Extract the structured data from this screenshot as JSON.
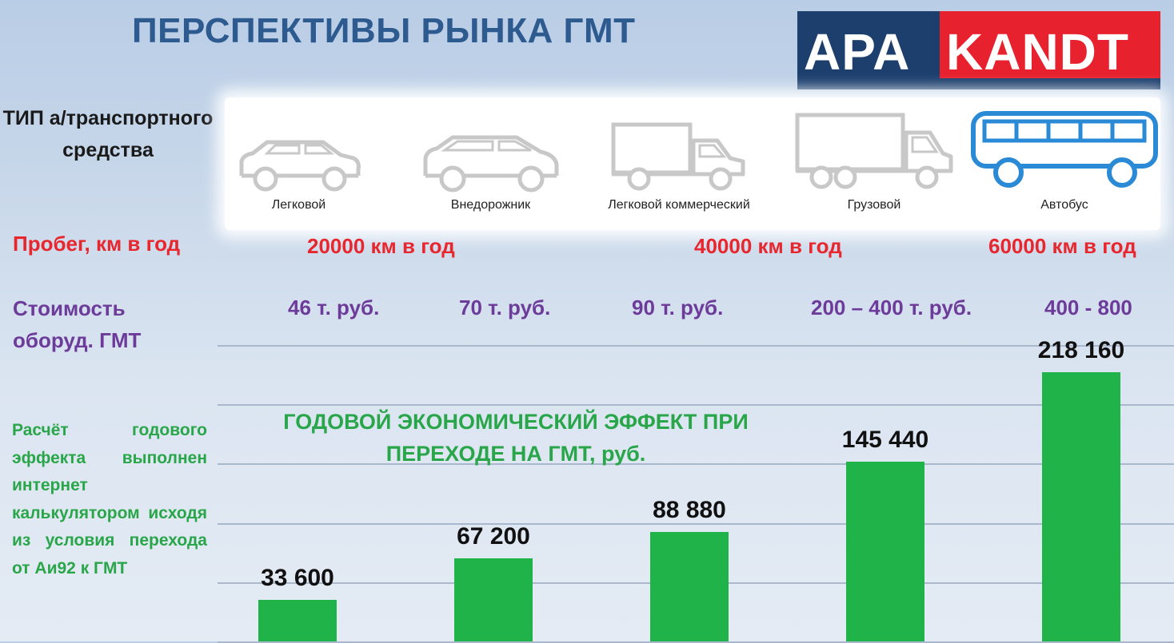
{
  "header": {
    "title": "ПЕРСПЕКТИВЫ РЫНКА ГМТ",
    "logo_left": "APA",
    "logo_right": "KANDT",
    "logo_colors": {
      "blue": "#1c3f6e",
      "red": "#e8212e"
    }
  },
  "rows": {
    "type_label": "ТИП а/транспортного средства",
    "mileage_label": "Пробег, км в год",
    "cost_label": "Стоимость оборуд.  ГМТ"
  },
  "vehicles": [
    {
      "label": "Легковой",
      "icon": "car-sedan-icon"
    },
    {
      "label": "Внедорожник",
      "icon": "suv-icon"
    },
    {
      "label": "Легковой коммерческий",
      "icon": "light-truck-icon"
    },
    {
      "label": "Грузовой",
      "icon": "truck-icon"
    },
    {
      "label": "Автобус",
      "icon": "bus-icon"
    }
  ],
  "mileage": [
    {
      "text": "20000 км в год"
    },
    {
      "text": "40000 км в год"
    },
    {
      "text": "60000 км в год"
    }
  ],
  "costs": [
    "46 т. руб.",
    "70 т. руб.",
    "90 т. руб.",
    "200 – 400 т. руб.",
    "400 - 800"
  ],
  "note": "Расчёт годового эффекта выполнен интернет калькулятором исходя из условия перехода от Аи92 к ГМТ",
  "chart_data": {
    "type": "bar",
    "title": "ГОДОВОЙ ЭКОНОМИЧЕСКИЙ ЭФФЕКТ ПРИ ПЕРЕХОДЕ НА ГМТ, руб.",
    "categories": [
      "Легковой",
      "Внедорожник",
      "Легковой коммерческий",
      "Грузовой",
      "Автобус"
    ],
    "values": [
      33600,
      67200,
      88880,
      145440,
      218160
    ],
    "value_labels": [
      "33 600",
      "67 200",
      "88 880",
      "145 440",
      "218 160"
    ],
    "ylim": [
      0,
      240000
    ],
    "grid": true,
    "bar_color": "#1fb34a",
    "title_color": "#2aa64a"
  }
}
